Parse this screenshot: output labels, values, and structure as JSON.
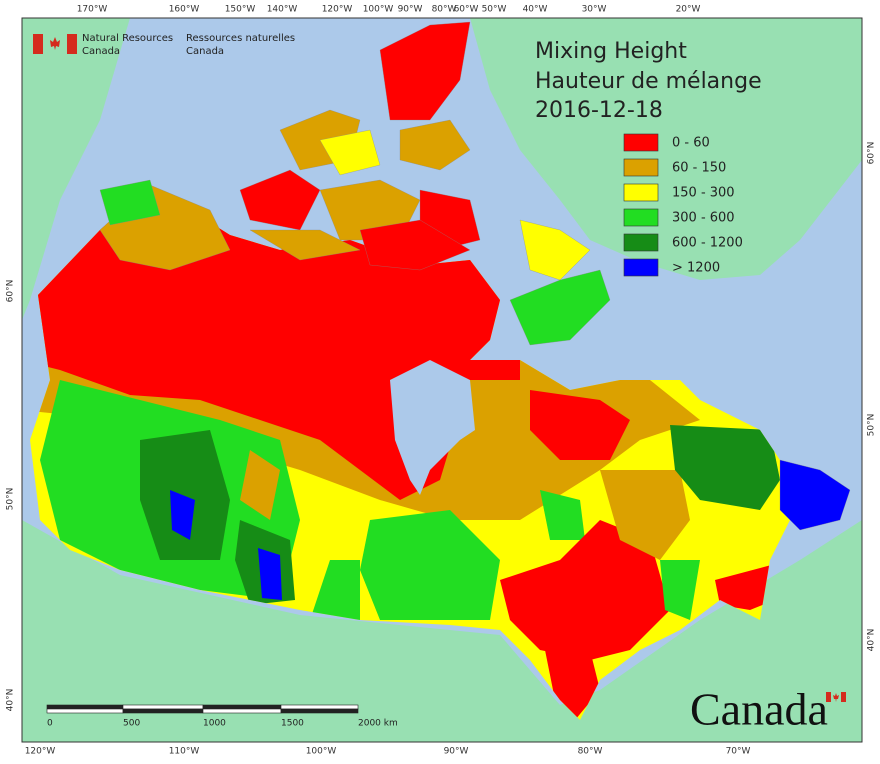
{
  "header": {
    "agency_en": [
      "Natural Resources",
      "Canada"
    ],
    "agency_fr": [
      "Ressources naturelles",
      "Canada"
    ]
  },
  "title": [
    "Mixing Height",
    "Hauteur de mélange",
    "2016-12-18"
  ],
  "legend": [
    {
      "label": "0 - 60",
      "color": "#ff0000"
    },
    {
      "label": "60 - 150",
      "color": "#dba100"
    },
    {
      "label": "150 - 300",
      "color": "#ffff00"
    },
    {
      "label": "300 - 600",
      "color": "#22dd22"
    },
    {
      "label": "600 - 1200",
      "color": "#168c16"
    },
    {
      "label": "> 1200",
      "color": "#0000ff"
    }
  ],
  "graticule": {
    "top": [
      "170°W",
      "160°W",
      "150°W",
      "140°W",
      "120°W",
      "100°W",
      "90°W",
      "80°W",
      "60°W",
      "50°W",
      "40°W",
      "30°W",
      "20°W"
    ],
    "bottom": [
      "120°W",
      "110°W",
      "100°W",
      "90°W",
      "80°W",
      "70°W"
    ],
    "left": [
      "60°N",
      "50°N",
      "40°N"
    ],
    "right": [
      "60°N",
      "50°N",
      "40°N"
    ]
  },
  "scale_bar": {
    "labels": [
      "0",
      "500",
      "1000",
      "1500",
      "2000 km"
    ]
  },
  "wordmark": "Canada"
}
